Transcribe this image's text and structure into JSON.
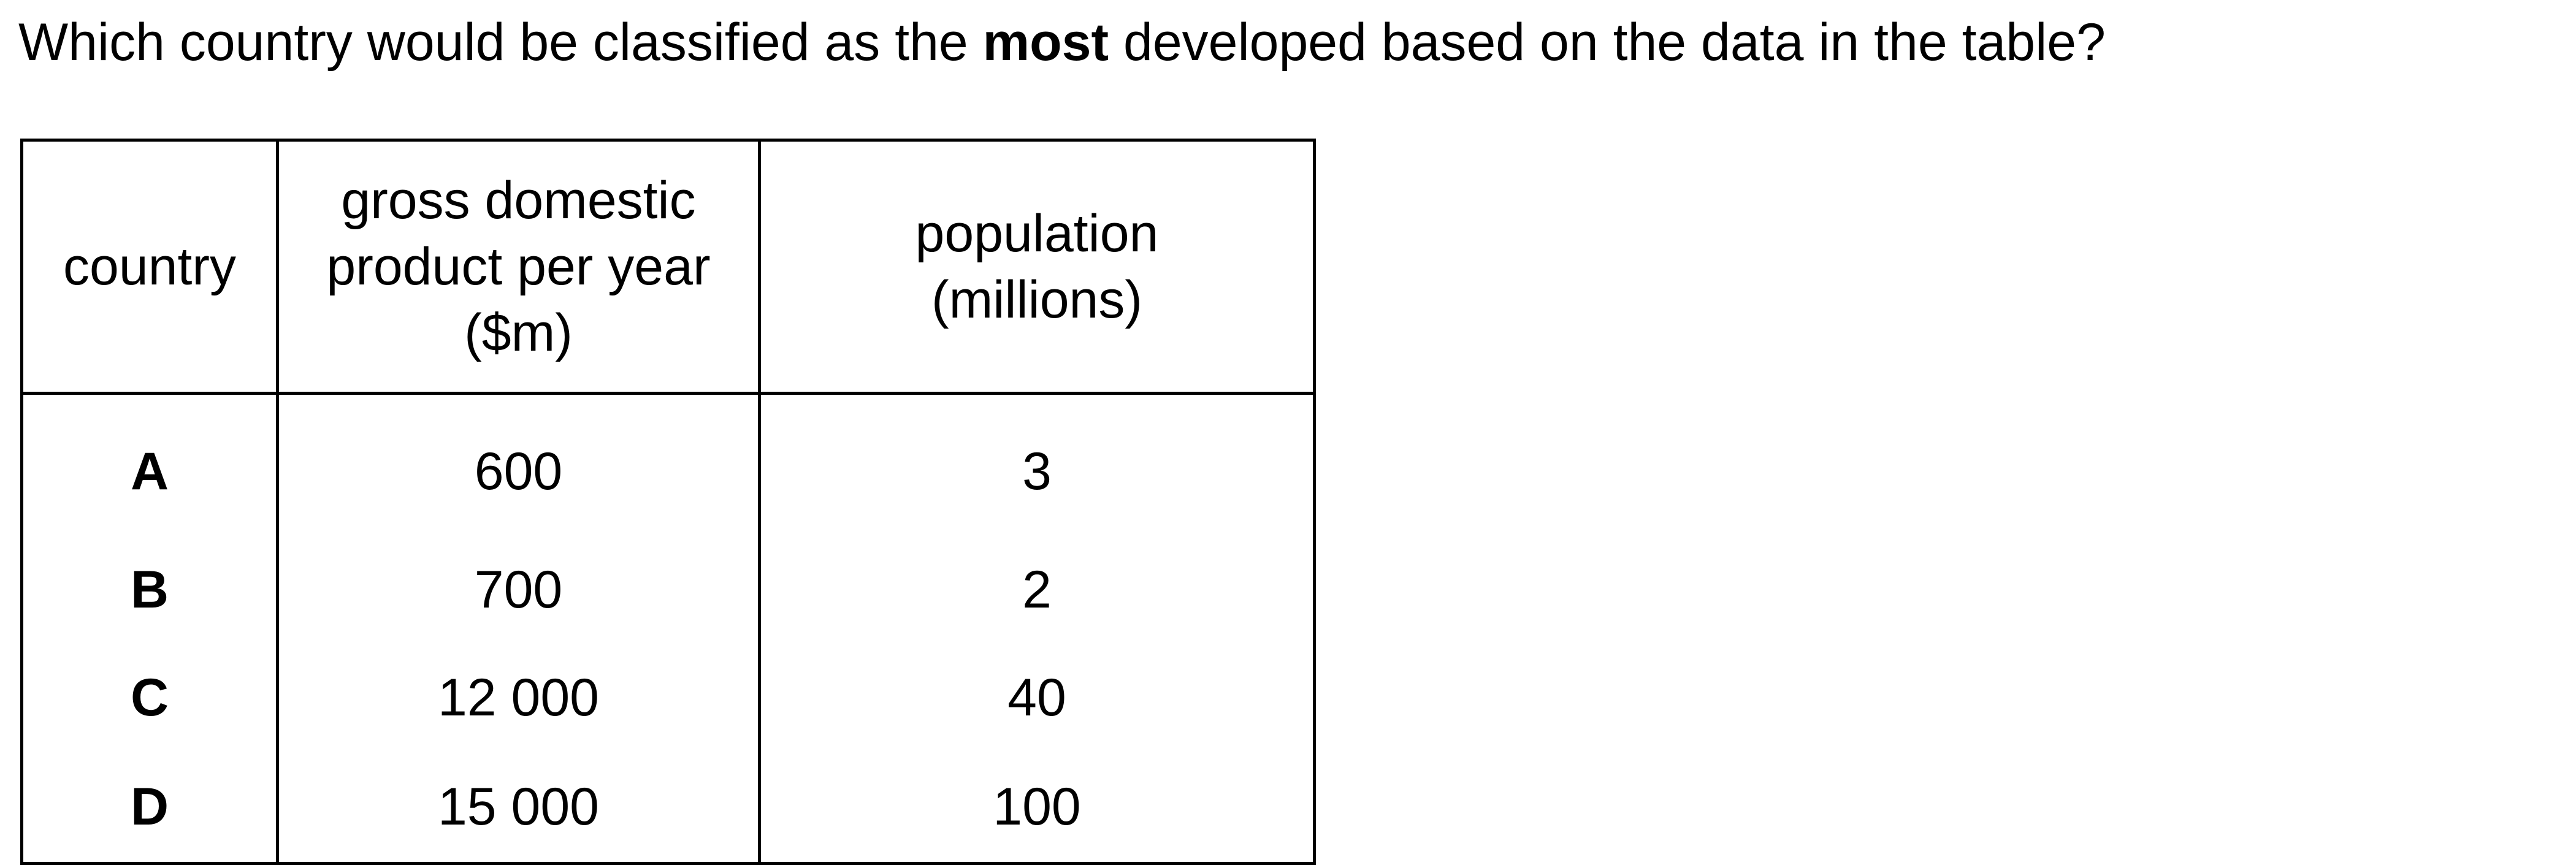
{
  "question": {
    "prefix": "Which country would be classified as the ",
    "emphasis": "most",
    "suffix": " developed based on the data in the table?"
  },
  "table": {
    "headers": {
      "country": "country",
      "gdp_line1": "gross domestic",
      "gdp_line2": "product per year",
      "gdp_line3": "($m)",
      "population_line1": "population",
      "population_line2": "(millions)"
    },
    "rows": [
      {
        "country": "A",
        "gdp": "600",
        "population": "3"
      },
      {
        "country": "B",
        "gdp": "700",
        "population": "2"
      },
      {
        "country": "C",
        "gdp": "12 000",
        "population": "40"
      },
      {
        "country": "D",
        "gdp": "15 000",
        "population": "100"
      }
    ]
  }
}
